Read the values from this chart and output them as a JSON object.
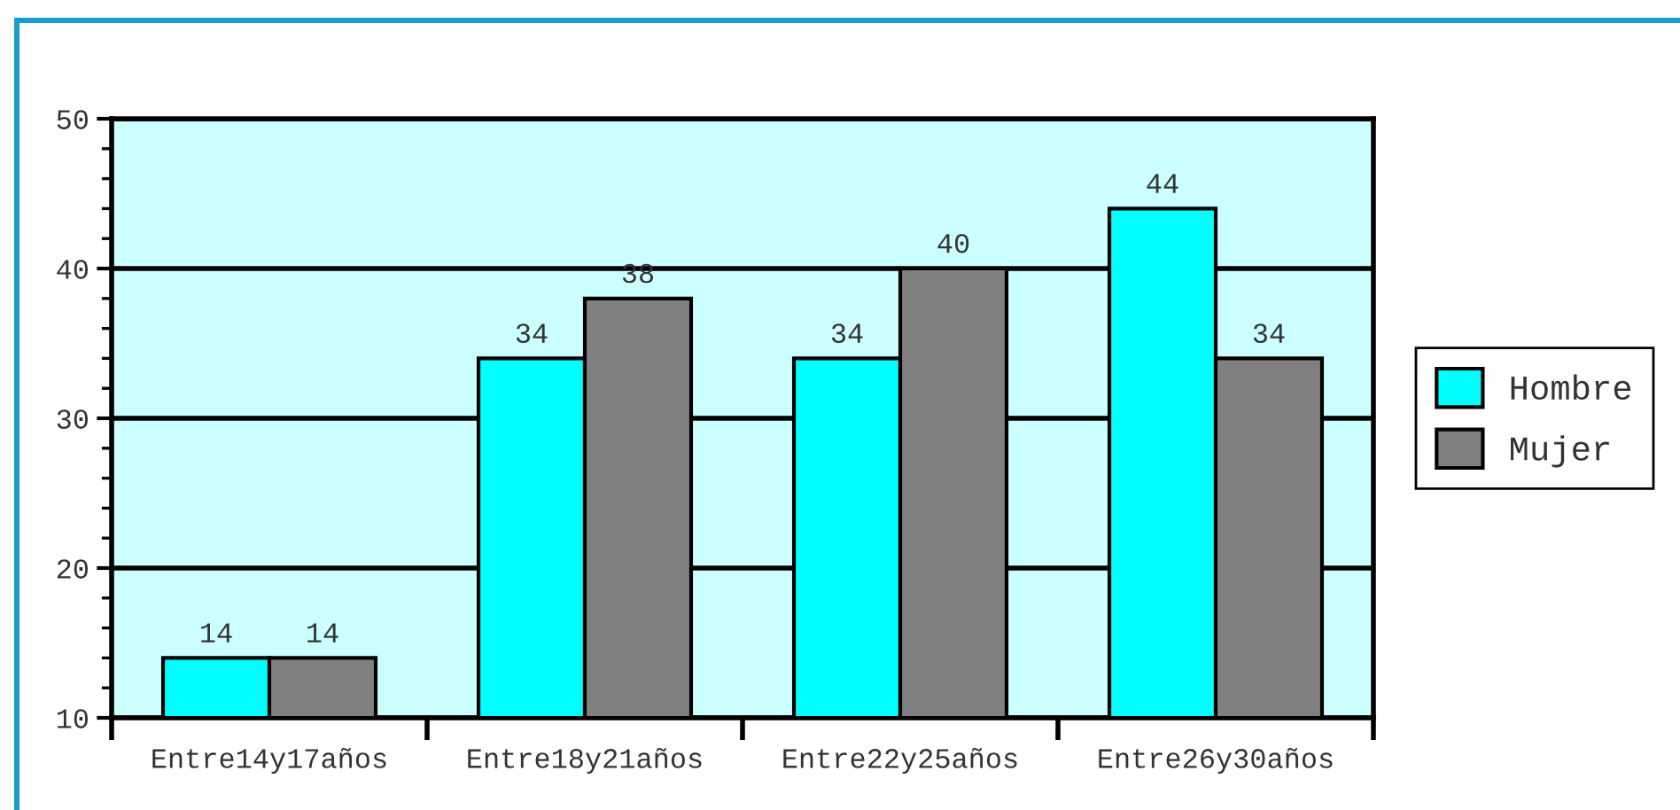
{
  "chart_data": {
    "type": "bar",
    "categories": [
      "Entre14y17años",
      "Entre18y21años",
      "Entre22y25años",
      "Entre26y30años"
    ],
    "series": [
      {
        "name": "Hombre",
        "color": "#00ffff",
        "values": [
          14,
          34,
          34,
          44
        ]
      },
      {
        "name": "Mujer",
        "color": "#808080",
        "values": [
          14,
          38,
          40,
          34
        ]
      }
    ],
    "ylim": [
      10,
      50
    ],
    "yticks": [
      10,
      20,
      30,
      40,
      50
    ],
    "grid": "y",
    "legend": "right",
    "data_labels": true
  }
}
